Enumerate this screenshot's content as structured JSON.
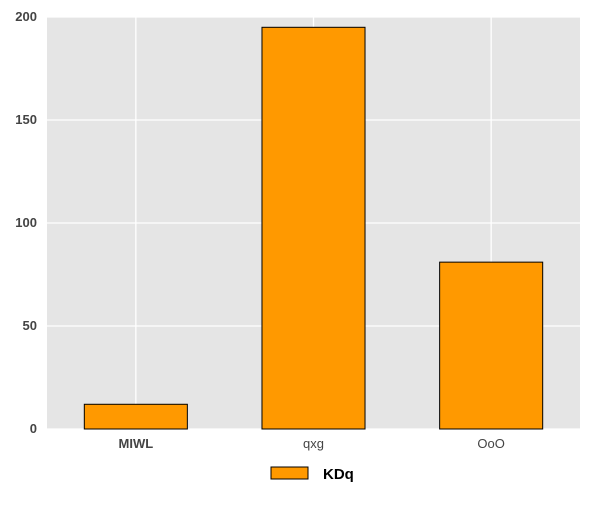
{
  "chart_data": {
    "type": "bar",
    "categories": [
      "MIWL",
      "qxg",
      "OoO"
    ],
    "series": [
      {
        "name": "KDq",
        "values": [
          12,
          195,
          81
        ],
        "color": "#ff9900"
      }
    ],
    "category_label_bold": [
      true,
      false,
      false
    ],
    "ylim": [
      0,
      200
    ],
    "yticks": [
      0,
      50,
      100,
      150,
      200
    ],
    "grid": true,
    "background_color": "#e5e5e5",
    "grid_color": "#ffffff",
    "bar_edge_color": "#000000",
    "legend_position": "bottom-center"
  }
}
